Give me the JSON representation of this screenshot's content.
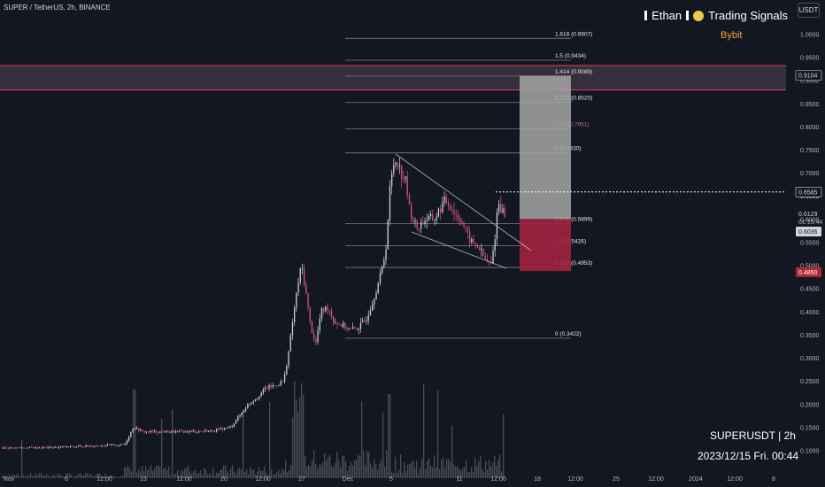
{
  "header": {
    "symbol_line": "SUPER / TetherUS, 2h, BINANCE",
    "brand_left": "Ethan",
    "brand_right": "Trading Signals",
    "exchange": "Bybit",
    "currency_button": "USDT"
  },
  "footer": {
    "ticker": "SUPERUSDT | 2h",
    "datetime": "2023/12/15 Fri. 00:44"
  },
  "colors": {
    "background": "#131722",
    "candle_up": "#cfcfcf",
    "candle_down": "#d9547f",
    "volume": "#5d606b",
    "fib_line": "#787b86",
    "resistance_zone_border": "#f23645",
    "target_box": "#a6a6a6",
    "stop_box": "#a3223f",
    "current_price_label": "#ffffff",
    "stop_price_label": "#b22833"
  },
  "chart_data": {
    "type": "candlestick",
    "x_axis_labels": [
      "Nov",
      "6",
      "12:00",
      "13",
      "12:00",
      "20",
      "12:00",
      "27",
      "Dec",
      "5",
      "11",
      "12:00",
      "18",
      "12:00",
      "25",
      "12:00",
      "2024",
      "12:00",
      "8"
    ],
    "y_axis_ticks": [
      1.0,
      0.95,
      0.9,
      0.85,
      0.8,
      0.75,
      0.7,
      0.65,
      0.6,
      0.55,
      0.5,
      0.45,
      0.4,
      0.35,
      0.3,
      0.25,
      0.2,
      0.15,
      0.1
    ],
    "y_tick_labels": [
      "1.0000",
      "0.9500",
      "0.9000",
      "0.8500",
      "0.8000",
      "0.7500",
      "0.7000",
      "0.6500",
      "0.6000",
      "0.5500",
      "0.5000",
      "0.4500",
      "0.4000",
      "0.3500",
      "0.3000",
      "0.2500",
      "0.2000",
      "0.1500",
      "0.1000"
    ],
    "ylim": [
      0.06,
      1.07
    ],
    "fib_levels": [
      {
        "label": "1.618 (0.9907)",
        "value": 0.9907
      },
      {
        "label": "1.5 (0.9434)",
        "value": 0.9434
      },
      {
        "label": "1.414 (0.9089)",
        "value": 0.9089
      },
      {
        "label": "1.272 (0.8520)",
        "value": 0.852
      },
      {
        "label": "1.13 (0.7951)",
        "value": 0.7951
      },
      {
        "label": "1 (0.7430)",
        "value": 0.743
      },
      {
        "label": "0.618 (0.5899)",
        "value": 0.5899
      },
      {
        "label": "0.5 (0.5426)",
        "value": 0.5426
      },
      {
        "label": "0.382 (0.4953)",
        "value": 0.4953
      },
      {
        "label": "0 (0.3422)",
        "value": 0.3422
      }
    ],
    "resistance_zone": [
      0.879,
      0.932
    ],
    "target_box": {
      "top": 0.91,
      "entry": 0.6,
      "bottom": 0.4875
    },
    "dotted_level": 0.6585,
    "price_labels": [
      {
        "text": "0.9104",
        "value": 0.9104
      },
      {
        "text": "0.6585",
        "value": 0.6585
      },
      {
        "text": "0.6129",
        "value": 0.6129
      },
      {
        "text": "01:15:44",
        "value": 0.59
      },
      {
        "text": "0.6036",
        "value": 0.6036
      },
      {
        "text": "0.4850",
        "value": 0.485
      }
    ],
    "price_path": [
      [
        0,
        0.105
      ],
      [
        60,
        0.106
      ],
      [
        100,
        0.109
      ],
      [
        140,
        0.112
      ],
      [
        150,
        0.15
      ],
      [
        160,
        0.14
      ],
      [
        200,
        0.14
      ],
      [
        240,
        0.142
      ],
      [
        260,
        0.15
      ],
      [
        270,
        0.175
      ],
      [
        280,
        0.2
      ],
      [
        290,
        0.215
      ],
      [
        300,
        0.235
      ],
      [
        310,
        0.24
      ],
      [
        320,
        0.25
      ],
      [
        326,
        0.32
      ],
      [
        330,
        0.38
      ],
      [
        336,
        0.46
      ],
      [
        340,
        0.5
      ],
      [
        345,
        0.44
      ],
      [
        350,
        0.37
      ],
      [
        356,
        0.33
      ],
      [
        362,
        0.4
      ],
      [
        370,
        0.41
      ],
      [
        376,
        0.38
      ],
      [
        386,
        0.37
      ],
      [
        396,
        0.36
      ],
      [
        404,
        0.365
      ],
      [
        412,
        0.38
      ],
      [
        420,
        0.42
      ],
      [
        428,
        0.47
      ],
      [
        432,
        0.5
      ],
      [
        436,
        0.55
      ],
      [
        440,
        0.67
      ],
      [
        444,
        0.72
      ],
      [
        448,
        0.73
      ],
      [
        452,
        0.7
      ],
      [
        458,
        0.68
      ],
      [
        462,
        0.62
      ],
      [
        470,
        0.58
      ],
      [
        480,
        0.6
      ],
      [
        490,
        0.6
      ],
      [
        496,
        0.62
      ],
      [
        502,
        0.64
      ],
      [
        508,
        0.63
      ],
      [
        514,
        0.61
      ],
      [
        520,
        0.6
      ],
      [
        526,
        0.57
      ],
      [
        532,
        0.55
      ],
      [
        540,
        0.54
      ],
      [
        548,
        0.51
      ],
      [
        554,
        0.5
      ],
      [
        558,
        0.55
      ],
      [
        562,
        0.64
      ],
      [
        566,
        0.62
      ],
      [
        570,
        0.61
      ]
    ]
  }
}
